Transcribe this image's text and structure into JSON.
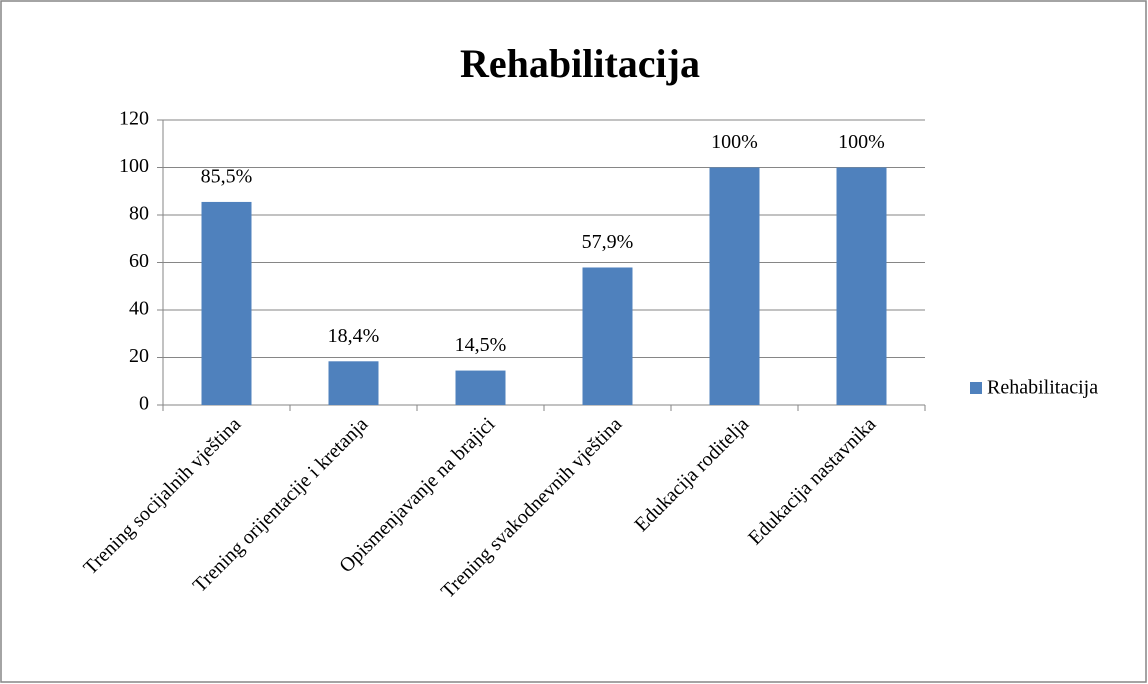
{
  "chart_data": {
    "type": "bar",
    "title": "Rehabilitacija",
    "categories": [
      "Trening socijalnih vještina",
      "Trening orijentacije i kretanja",
      "Opismenjavanje na brajici",
      "Trening svakodnevnih vještina",
      "Edukacija roditelja",
      "Edukacija nastavnika"
    ],
    "series": [
      {
        "name": "Rehabilitacija",
        "color": "#4f81bd",
        "values": [
          85.5,
          18.4,
          14.5,
          57.9,
          100,
          100
        ],
        "value_labels": [
          "85,5%",
          "18,4%",
          "14,5%",
          "57,9%",
          "100%",
          "100%"
        ]
      }
    ],
    "ylim": [
      0,
      120
    ],
    "yticks": [
      0,
      20,
      40,
      60,
      80,
      100,
      120
    ],
    "grid": true,
    "legend": "right"
  }
}
